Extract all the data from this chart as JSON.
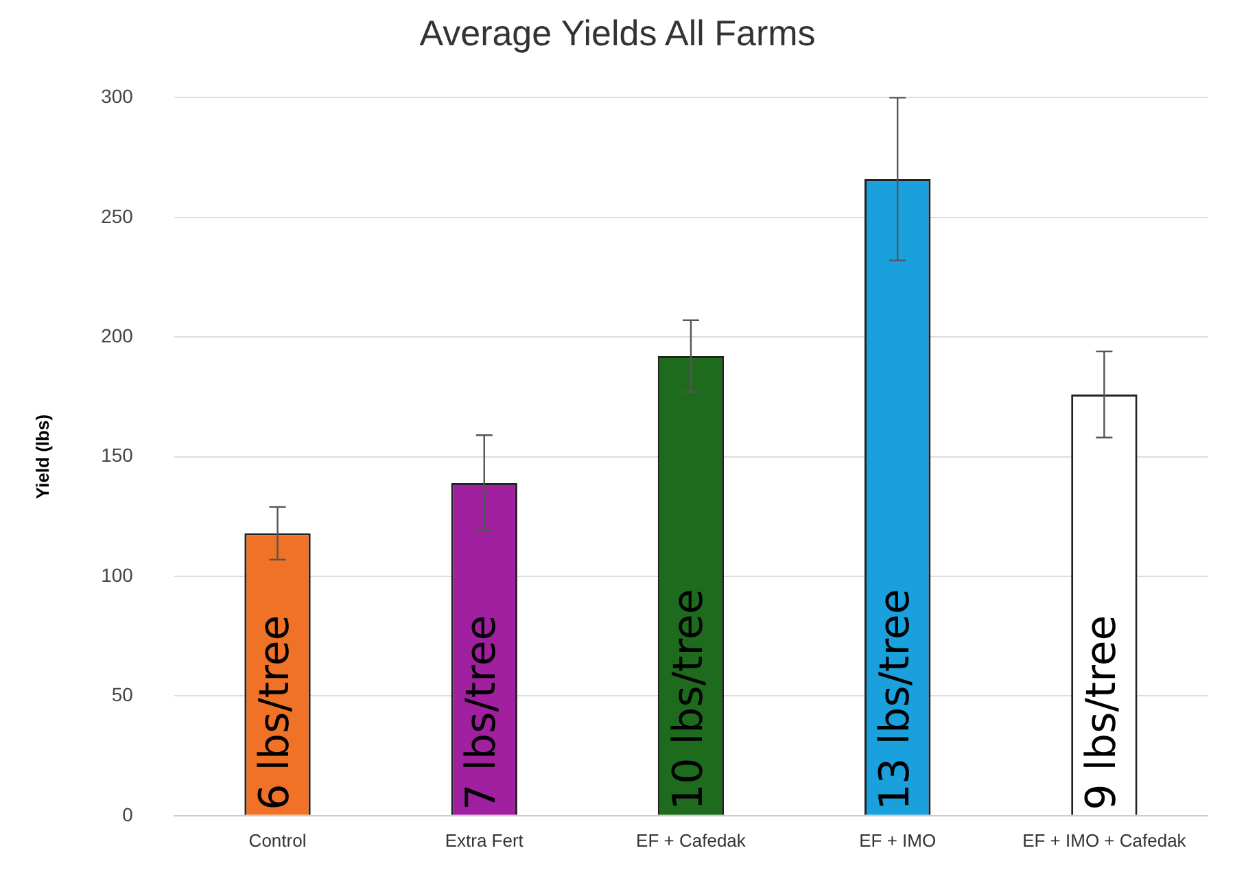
{
  "chart_data": {
    "type": "bar",
    "title": "Average Yields All Farms",
    "ylabel": "Yield (lbs)",
    "categories": [
      "Control",
      "Extra Fert",
      "EF + Cafedak",
      "EF + IMO",
      "EF + IMO + Cafedak"
    ],
    "values": [
      118,
      139,
      192,
      266,
      176
    ],
    "errors": [
      11,
      20,
      15,
      34,
      18
    ],
    "colors": [
      "#f07226",
      "#a020a0",
      "#1e6b1e",
      "#1aa0dc",
      "#ffffff"
    ],
    "annotations": [
      {
        "text": "6 lbs/tree",
        "x": "Control",
        "y": 0
      },
      {
        "text": "7 lbs/tree",
        "x": "Extra Fert",
        "y": 0
      },
      {
        "text": "10 lbs/tree",
        "x": "EF + Cafedak",
        "y": 0
      },
      {
        "text": "13 lbs/tree",
        "x": "EF + IMO",
        "y": 0
      },
      {
        "text": "9 lbs/tree",
        "x": "EF + IMO + Cafedak",
        "y": 0
      }
    ],
    "ylim": [
      0,
      300
    ],
    "yticks": [
      0,
      50,
      100,
      150,
      200,
      250,
      300
    ],
    "grid": "y",
    "legend": false
  }
}
